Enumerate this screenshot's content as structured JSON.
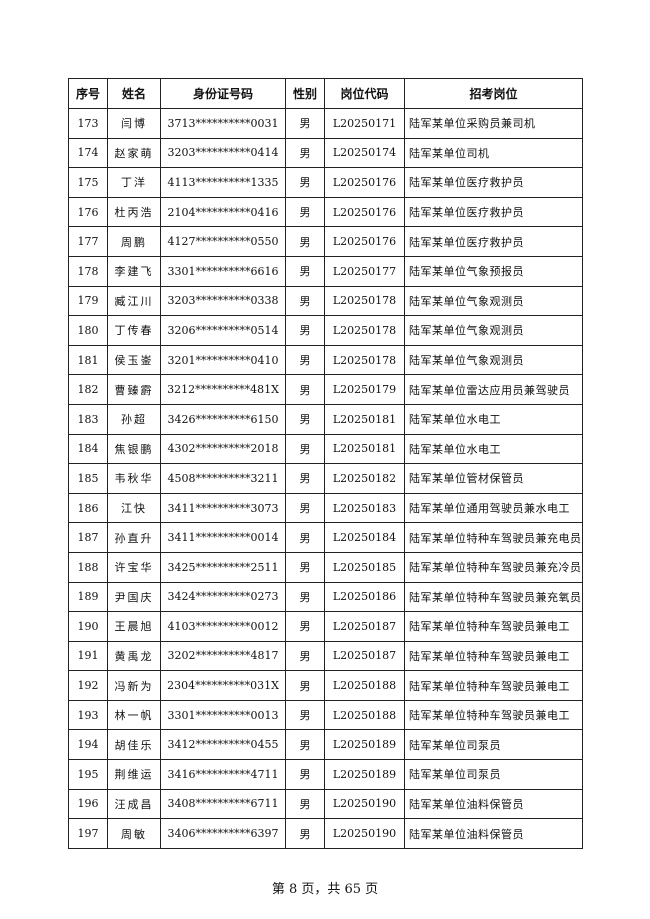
{
  "headers": [
    "序号",
    "姓名",
    "身份证号码",
    "性别",
    "岗位代码",
    "招考岗位"
  ],
  "rows": [
    [
      "173",
      "闫博",
      "3713**********0031",
      "男",
      "L20250171",
      "陆军某单位采购员兼司机"
    ],
    [
      "174",
      "赵家萌",
      "3203**********0414",
      "男",
      "L20250174",
      "陆军某单位司机"
    ],
    [
      "175",
      "丁洋",
      "4113**********1335",
      "男",
      "L20250176",
      "陆军某单位医疗救护员"
    ],
    [
      "176",
      "杜丙浩",
      "2104**********0416",
      "男",
      "L20250176",
      "陆军某单位医疗救护员"
    ],
    [
      "177",
      "周鹏",
      "4127**********0550",
      "男",
      "L20250176",
      "陆军某单位医疗救护员"
    ],
    [
      "178",
      "李建飞",
      "3301**********6616",
      "男",
      "L20250177",
      "陆军某单位气象预报员"
    ],
    [
      "179",
      "臧江川",
      "3203**********0338",
      "男",
      "L20250178",
      "陆军某单位气象观测员"
    ],
    [
      "180",
      "丁传春",
      "3206**********0514",
      "男",
      "L20250178",
      "陆军某单位气象观测员"
    ],
    [
      "181",
      "侯玉崟",
      "3201**********0410",
      "男",
      "L20250178",
      "陆军某单位气象观测员"
    ],
    [
      "182",
      "曹臻霨",
      "3212**********481X",
      "男",
      "L20250179",
      "陆军某单位雷达应用员兼驾驶员"
    ],
    [
      "183",
      "孙超",
      "3426**********6150",
      "男",
      "L20250181",
      "陆军某单位水电工"
    ],
    [
      "184",
      "焦银鹏",
      "4302**********2018",
      "男",
      "L20250181",
      "陆军某单位水电工"
    ],
    [
      "185",
      "韦秋华",
      "4508**********3211",
      "男",
      "L20250182",
      "陆军某单位管材保管员"
    ],
    [
      "186",
      "江快",
      "3411**********3073",
      "男",
      "L20250183",
      "陆军某单位通用驾驶员兼水电工"
    ],
    [
      "187",
      "孙直升",
      "3411**********0014",
      "男",
      "L20250184",
      "陆军某单位特种车驾驶员兼充电员"
    ],
    [
      "188",
      "许宝华",
      "3425**********2511",
      "男",
      "L20250185",
      "陆军某单位特种车驾驶员兼充冷员"
    ],
    [
      "189",
      "尹国庆",
      "3424**********0273",
      "男",
      "L20250186",
      "陆军某单位特种车驾驶员兼充氧员"
    ],
    [
      "190",
      "王晨旭",
      "4103**********0012",
      "男",
      "L20250187",
      "陆军某单位特种车驾驶员兼电工"
    ],
    [
      "191",
      "黄禹龙",
      "3202**********4817",
      "男",
      "L20250187",
      "陆军某单位特种车驾驶员兼电工"
    ],
    [
      "192",
      "冯新为",
      "2304**********031X",
      "男",
      "L20250188",
      "陆军某单位特种车驾驶员兼电工"
    ],
    [
      "193",
      "林一帆",
      "3301**********0013",
      "男",
      "L20250188",
      "陆军某单位特种车驾驶员兼电工"
    ],
    [
      "194",
      "胡佳乐",
      "3412**********0455",
      "男",
      "L20250189",
      "陆军某单位司泵员"
    ],
    [
      "195",
      "荆维运",
      "3416**********4711",
      "男",
      "L20250189",
      "陆军某单位司泵员"
    ],
    [
      "196",
      "汪成昌",
      "3408**********6711",
      "男",
      "L20250190",
      "陆军某单位油料保管员"
    ],
    [
      "197",
      "周敏",
      "3406**********6397",
      "男",
      "L20250190",
      "陆军某单位油料保管员"
    ]
  ],
  "footer": "第 8 页，共 65 页"
}
